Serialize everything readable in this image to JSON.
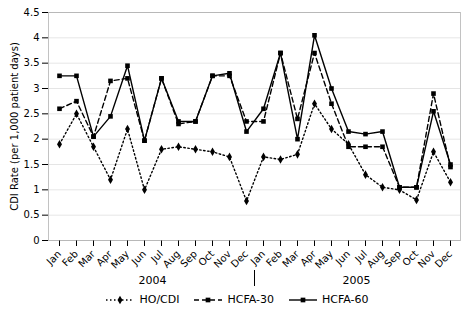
{
  "chart_data": {
    "type": "line",
    "ylabel": "CDI Rate (per 1,000 patient days)",
    "categories": [
      "Jan",
      "Feb",
      "Mar",
      "Apr",
      "May",
      "Jun",
      "Jul",
      "Aug",
      "Sep",
      "Oct",
      "Nov",
      "Dec",
      "Jan",
      "Feb",
      "Mar",
      "Apr",
      "May",
      "Jun",
      "Jul",
      "Aug",
      "Sep",
      "Oct",
      "Nov",
      "Dec"
    ],
    "annotations": [
      "2004",
      "2005"
    ],
    "series": [
      {
        "name": "HO/CDI",
        "color": "black",
        "line_style": "dotted",
        "marker": "diamond",
        "values": [
          1.9,
          2.5,
          1.85,
          1.2,
          2.2,
          1.0,
          1.8,
          1.85,
          1.8,
          1.75,
          1.65,
          0.78,
          1.65,
          1.6,
          1.7,
          2.7,
          2.2,
          1.9,
          1.3,
          1.05,
          1.0,
          0.8,
          1.75,
          1.15
        ]
      },
      {
        "name": "HCFA-30",
        "color": "black",
        "line_style": "dashed",
        "marker": "square",
        "values": [
          2.6,
          2.75,
          2.05,
          3.15,
          3.2,
          1.97,
          3.2,
          2.3,
          2.35,
          3.25,
          3.25,
          2.35,
          2.35,
          3.7,
          2.4,
          3.7,
          2.7,
          1.85,
          1.85,
          1.85,
          1.05,
          1.05,
          2.9,
          1.45
        ]
      },
      {
        "name": "HCFA-60",
        "color": "black",
        "line_style": "solid",
        "marker": "square",
        "values": [
          3.25,
          3.25,
          2.05,
          2.45,
          3.45,
          1.97,
          3.2,
          2.35,
          2.35,
          3.25,
          3.3,
          2.15,
          2.6,
          3.7,
          2.0,
          4.05,
          3.0,
          2.15,
          2.1,
          2.15,
          1.05,
          1.05,
          2.55,
          1.5
        ]
      }
    ],
    "ylim": [
      0,
      4.5
    ],
    "yticks": [
      0,
      0.5,
      1,
      1.5,
      2,
      2.5,
      3,
      3.5,
      4,
      4.5
    ],
    "grid": true,
    "legend": "bottom"
  }
}
